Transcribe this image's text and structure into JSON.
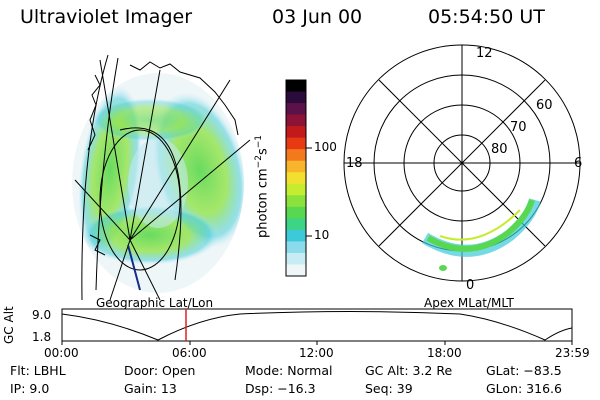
{
  "header": {
    "instrument": "Ultraviolet Imager",
    "date": "03 Jun 00",
    "time": "05:54:50 UT"
  },
  "colorbar": {
    "unit_label": "photon cm",
    "unit_sup1": "−2",
    "unit_mid": "s",
    "unit_sup2": "−1",
    "ticks": [
      "100",
      "10"
    ],
    "colors": [
      "#000000",
      "#2b0a3c",
      "#5a1248",
      "#8c1236",
      "#c21a1a",
      "#e83a12",
      "#f4781c",
      "#f8b42a",
      "#f2e030",
      "#c6ec30",
      "#8ce23c",
      "#58d850",
      "#3ed486",
      "#3ccad8",
      "#8adcec",
      "#c8ecf4",
      "#eef6f8"
    ]
  },
  "left_panel": {
    "caption": "Geographic Lat/Lon"
  },
  "right_panel": {
    "caption": "Apex MLat/MLT",
    "mlt_labels": {
      "top": "12",
      "left": "18",
      "right": "6",
      "bottom": "0"
    },
    "lat_labels": [
      "60",
      "70",
      "80"
    ]
  },
  "timeline": {
    "axis_title": "GC Alt",
    "y_ticks": [
      "9.0",
      "1.8"
    ],
    "x_ticks": [
      "00:00",
      "06:00",
      "12:00",
      "18:00",
      "23:59"
    ],
    "marker_color": "#e02020"
  },
  "info": {
    "flt": "Flt: LBHL",
    "ip": "IP:  9.0",
    "door": "Door: Open",
    "gain": "Gain: 13",
    "mode": "Mode: Normal",
    "dsp": "Dsp:  −16.3",
    "gcalt": "GC Alt: 3.2 Re",
    "seq": "Seq: 39",
    "glat": "GLat: −83.5",
    "glon": "GLon: 316.6"
  }
}
